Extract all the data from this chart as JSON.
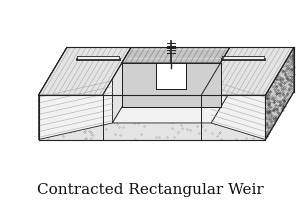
{
  "title": "Contracted Rectangular Weir",
  "title_fontsize": 11,
  "bg_color": "#ffffff",
  "fig_width": 3.0,
  "fig_height": 2.08,
  "dpi": 100,
  "line_color": "#222222",
  "stipple_color": "#888888",
  "gray_dark": "#aaaaaa",
  "gray_med": "#cccccc",
  "gray_light": "#e4e4e4",
  "gray_white": "#f2f2f2",
  "water_color": "#d8d8d8"
}
